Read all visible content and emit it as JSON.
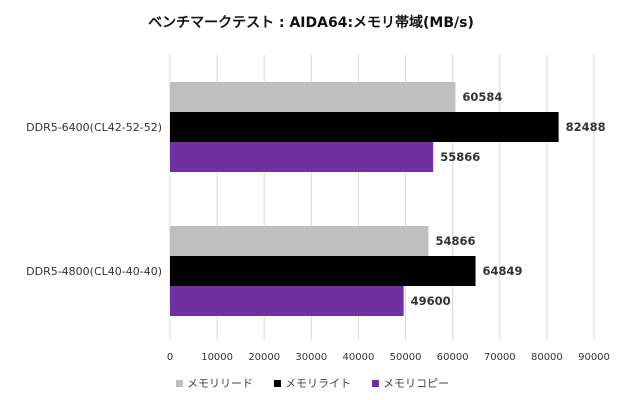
{
  "chart_data": {
    "type": "bar",
    "orientation": "horizontal",
    "title": "ベンチマークテスト : AIDA64:メモリ帯域(MB/s)",
    "categories": [
      "DDR5-6400(CL42-52-52)",
      "DDR5-4800(CL40-40-40)"
    ],
    "series": [
      {
        "name": "メモリリード",
        "color": "#bfbfbf",
        "values": [
          60584,
          54866
        ]
      },
      {
        "name": "メモリライト",
        "color": "#000000",
        "values": [
          82488,
          64849
        ]
      },
      {
        "name": "メモリコピー",
        "color": "#7030a0",
        "values": [
          55866,
          49600
        ]
      }
    ],
    "xlim": [
      0,
      90000
    ],
    "xticks": [
      "0",
      "10000",
      "20000",
      "30000",
      "40000",
      "50000",
      "60000",
      "70000",
      "80000",
      "90000"
    ],
    "grid": true,
    "legend_position": "bottom"
  }
}
